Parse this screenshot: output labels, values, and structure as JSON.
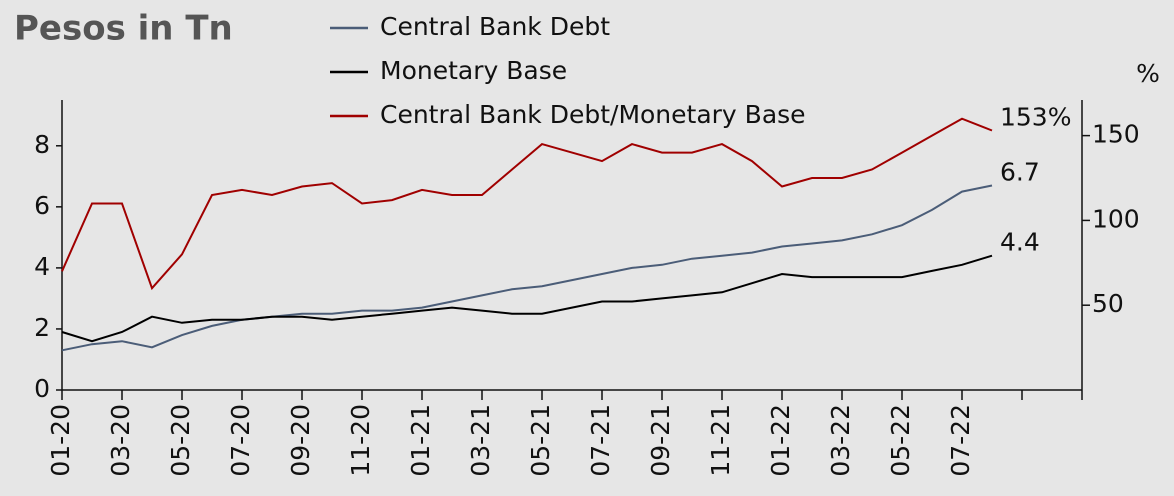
{
  "chart_data": {
    "type": "line",
    "title": "Pesos in Tn",
    "y2label": "%",
    "categories": [
      "01-20",
      null,
      "03-20",
      null,
      "05-20",
      null,
      "07-20",
      null,
      "09-20",
      null,
      "11-20",
      null,
      "01-21",
      null,
      "03-21",
      null,
      "05-21",
      null,
      "07-21",
      null,
      "09-21",
      null,
      "11-21",
      null,
      "01-22",
      null,
      "03-22",
      null,
      "05-22",
      null,
      "07-22",
      null,
      null,
      null,
      null
    ],
    "series": [
      {
        "name": "Central Bank Debt",
        "color": "#4b5d78",
        "end_label": "6.7",
        "values": [
          1.3,
          1.5,
          1.6,
          1.4,
          1.8,
          2.1,
          2.3,
          2.4,
          2.5,
          2.5,
          2.6,
          2.6,
          2.7,
          2.9,
          3.1,
          3.3,
          3.4,
          3.6,
          3.8,
          4.0,
          4.1,
          4.3,
          4.4,
          4.5,
          4.7,
          4.8,
          4.9,
          5.1,
          5.4,
          5.9,
          6.5,
          6.7,
          null,
          null,
          null
        ]
      },
      {
        "name": "Monetary Base",
        "color": "#000000",
        "end_label": "4.4",
        "values": [
          1.9,
          1.6,
          1.9,
          2.4,
          2.2,
          2.3,
          2.3,
          2.4,
          2.4,
          2.3,
          2.4,
          2.5,
          2.6,
          2.7,
          2.6,
          2.5,
          2.5,
          2.7,
          2.9,
          2.9,
          3.0,
          3.1,
          3.2,
          3.5,
          3.8,
          3.7,
          3.7,
          3.7,
          3.7,
          3.9,
          4.1,
          4.4,
          null,
          null,
          null
        ]
      },
      {
        "name": "Central Bank Debt/Monetary Base",
        "color": "#a00000",
        "axis": "y2",
        "end_label": "153%",
        "values": [
          70,
          110,
          110,
          60,
          80,
          115,
          118,
          115,
          120,
          122,
          110,
          112,
          118,
          115,
          115,
          130,
          145,
          140,
          135,
          145,
          140,
          140,
          145,
          135,
          120,
          125,
          125,
          130,
          140,
          150,
          160,
          153,
          null,
          null,
          null
        ]
      }
    ],
    "ylim": [
      0,
      9.5
    ],
    "yticks": [
      0,
      2,
      4,
      6,
      8
    ],
    "y2lim": [
      0,
      171
    ],
    "y2ticks": [
      50,
      100,
      150
    ]
  }
}
